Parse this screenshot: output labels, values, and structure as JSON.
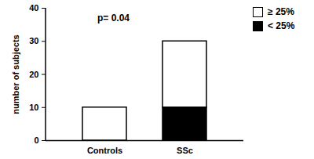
{
  "chart_data": {
    "type": "bar",
    "stacked": true,
    "annotations": [
      "p= 0.04"
    ],
    "y_label": "number of subjects",
    "categories": [
      "Controls",
      "SSc"
    ],
    "series": [
      {
        "name": "≥ 25%",
        "color": "#ffffff",
        "values": [
          10,
          20
        ]
      },
      {
        "name": "< 25%",
        "color": "#000000",
        "values": [
          0,
          10
        ]
      }
    ],
    "ylim": [
      0,
      40
    ],
    "yticks": [
      0,
      10,
      20,
      30,
      40
    ],
    "legend": "right",
    "grid": false
  }
}
